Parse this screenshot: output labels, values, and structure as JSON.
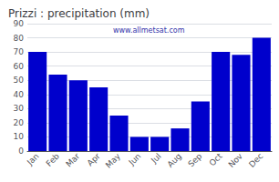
{
  "chart_data": {
    "type": "bar",
    "title": "Prizzi : precipitation (mm)",
    "categories": [
      "Jan",
      "Feb",
      "Mar",
      "Apr",
      "May",
      "Jun",
      "Jul",
      "Aug",
      "Sep",
      "Oct",
      "Nov",
      "Dec"
    ],
    "values": [
      70,
      54,
      50,
      45,
      25,
      10,
      10,
      16,
      35,
      70,
      68,
      80
    ],
    "color": "#0000CC",
    "ylim": [
      0,
      90
    ],
    "yticks": [
      0,
      10,
      20,
      30,
      40,
      50,
      60,
      70,
      80,
      90
    ],
    "grid": true,
    "annotations": [
      "www.allmetsat.com"
    ]
  }
}
